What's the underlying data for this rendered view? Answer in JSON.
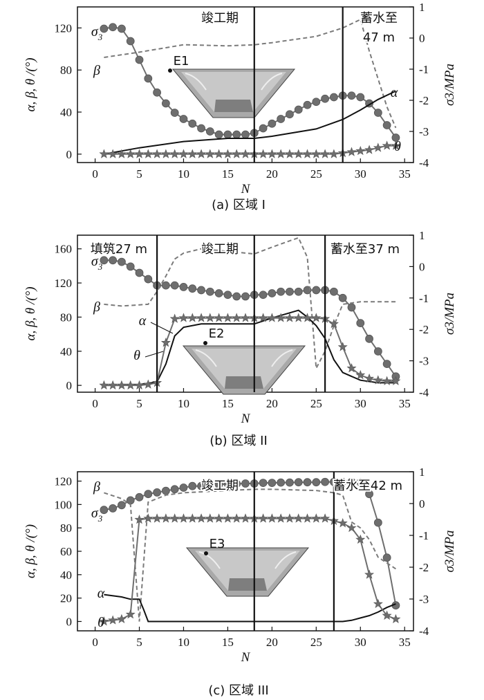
{
  "chart_data": [
    {
      "type": "line",
      "caption": "(a) 区域 I",
      "xlabel": "N",
      "ylabel_left": "α, β, θ /(°)",
      "ylabel_right": "σ3/MPa",
      "xlim": [
        -2,
        36
      ],
      "xticks": [
        0,
        5,
        10,
        15,
        20,
        25,
        30,
        35
      ],
      "ylim_left": [
        -8,
        140
      ],
      "yticks_left": [
        0,
        40,
        80,
        120
      ],
      "ylim_right": [
        -4,
        1
      ],
      "yticks_right": [
        1,
        0,
        -1,
        -2,
        -3,
        -4
      ],
      "vlines": [
        18,
        28
      ],
      "annotations": [
        {
          "text": "竣工期",
          "x": 18
        },
        {
          "text": "蓄水至",
          "x": 31
        },
        {
          "text": "47 m",
          "x": 31
        }
      ],
      "inset_label": "E1",
      "series": [
        {
          "name": "σ3",
          "axis": "right",
          "marker": "circle",
          "color": "#6e6e6e",
          "x": [
            1,
            2,
            3,
            4,
            5,
            6,
            7,
            8,
            9,
            10,
            11,
            12,
            13,
            14,
            15,
            16,
            17,
            18,
            19,
            20,
            21,
            22,
            23,
            24,
            25,
            26,
            27,
            28,
            29,
            30,
            31,
            32,
            33,
            34
          ],
          "y": [
            0.3,
            0.35,
            0.3,
            -0.1,
            -0.7,
            -1.3,
            -1.75,
            -2.1,
            -2.4,
            -2.6,
            -2.75,
            -2.9,
            -3.0,
            -3.1,
            -3.1,
            -3.1,
            -3.1,
            -3.05,
            -2.9,
            -2.75,
            -2.6,
            -2.45,
            -2.3,
            -2.15,
            -2.05,
            -1.95,
            -1.9,
            -1.85,
            -1.85,
            -1.9,
            -2.1,
            -2.4,
            -2.8,
            -3.2
          ]
        },
        {
          "name": "β",
          "axis": "left",
          "line": "dashed",
          "color": "#7a7a7a",
          "x": [
            1,
            5,
            10,
            15,
            18,
            20,
            25,
            28,
            30,
            31,
            33,
            34
          ],
          "y": [
            92,
            97,
            104,
            103,
            104,
            106,
            112,
            120,
            128,
            98,
            45,
            25
          ]
        },
        {
          "name": "α",
          "axis": "left",
          "line": "solid",
          "color": "#111111",
          "x": [
            1,
            5,
            10,
            15,
            18,
            20,
            25,
            28,
            30,
            32,
            34
          ],
          "y": [
            0,
            6,
            12,
            15,
            15,
            17,
            24,
            33,
            42,
            52,
            60
          ]
        },
        {
          "name": "θ",
          "axis": "left",
          "marker": "star",
          "color": "#6e6e6e",
          "x": [
            1,
            2,
            3,
            4,
            5,
            6,
            7,
            8,
            9,
            10,
            11,
            12,
            13,
            14,
            15,
            16,
            17,
            18,
            19,
            20,
            21,
            22,
            23,
            24,
            25,
            26,
            27,
            28,
            29,
            30,
            31,
            32,
            33,
            34
          ],
          "y": [
            0,
            0,
            0,
            0,
            0,
            0,
            0,
            0,
            0,
            0,
            0,
            0,
            0,
            0,
            0,
            0,
            0,
            0,
            0,
            0,
            0,
            0,
            0,
            0,
            0,
            0,
            0,
            1,
            2,
            3,
            4,
            6,
            8,
            8
          ]
        }
      ]
    },
    {
      "type": "line",
      "caption": "(b) 区域 II",
      "xlabel": "N",
      "ylabel_left": "α, β, θ /(°)",
      "ylabel_right": "σ3/MPa",
      "xlim": [
        -2,
        36
      ],
      "xticks": [
        0,
        5,
        10,
        15,
        20,
        25,
        30,
        35
      ],
      "ylim_left": [
        -8,
        176
      ],
      "yticks_left": [
        0,
        40,
        80,
        120,
        160
      ],
      "ylim_right": [
        -4,
        1
      ],
      "yticks_right": [
        1,
        0,
        -1,
        -2,
        -3,
        -4
      ],
      "vlines": [
        7,
        18,
        26
      ],
      "annotations": [
        {
          "text": "填筑27 m",
          "x": 3
        },
        {
          "text": "竣工期",
          "x": 18
        },
        {
          "text": "蓄水至37 m",
          "x": 30
        }
      ],
      "inset_label": "E2",
      "series": [
        {
          "name": "σ3",
          "axis": "right",
          "marker": "circle",
          "color": "#6e6e6e",
          "x": [
            1,
            2,
            3,
            4,
            5,
            6,
            7,
            8,
            9,
            10,
            11,
            12,
            13,
            14,
            15,
            16,
            17,
            18,
            19,
            20,
            21,
            22,
            23,
            24,
            25,
            26,
            27,
            28,
            29,
            30,
            31,
            32,
            33,
            34
          ],
          "y": [
            0.2,
            0.2,
            0.15,
            0.0,
            -0.2,
            -0.4,
            -0.6,
            -0.6,
            -0.6,
            -0.65,
            -0.7,
            -0.75,
            -0.8,
            -0.85,
            -0.9,
            -0.95,
            -0.95,
            -0.9,
            -0.9,
            -0.85,
            -0.8,
            -0.8,
            -0.8,
            -0.75,
            -0.75,
            -0.75,
            -0.8,
            -1.0,
            -1.3,
            -1.8,
            -2.3,
            -2.7,
            -3.1,
            -3.5
          ]
        },
        {
          "name": "β",
          "axis": "left",
          "line": "dashed",
          "color": "#7a7a7a",
          "x": [
            1,
            3,
            6,
            7,
            8,
            9,
            10,
            12,
            15,
            18,
            20,
            23,
            24,
            25,
            26,
            27,
            28,
            30,
            34
          ],
          "y": [
            95,
            93,
            95,
            110,
            128,
            148,
            155,
            160,
            157,
            154,
            162,
            173,
            150,
            20,
            40,
            70,
            95,
            98,
            98
          ]
        },
        {
          "name": "α",
          "axis": "left",
          "line": "solid",
          "color": "#111111",
          "x": [
            1,
            3,
            5,
            7,
            8,
            9,
            10,
            12,
            15,
            18,
            20,
            22,
            23,
            24,
            25,
            26,
            27,
            28,
            30,
            32,
            34
          ],
          "y": [
            0,
            0,
            1,
            4,
            25,
            58,
            68,
            72,
            72,
            72,
            79,
            85,
            88,
            80,
            70,
            55,
            30,
            15,
            6,
            3,
            3
          ]
        },
        {
          "name": "θ",
          "axis": "left",
          "marker": "star",
          "color": "#6e6e6e",
          "x": [
            1,
            2,
            3,
            4,
            5,
            6,
            7,
            8,
            9,
            10,
            11,
            12,
            13,
            14,
            15,
            16,
            17,
            18,
            19,
            20,
            21,
            22,
            23,
            24,
            25,
            26,
            27,
            28,
            29,
            30,
            31,
            32,
            33,
            34
          ],
          "y": [
            0,
            0,
            0,
            0,
            0,
            1,
            3,
            50,
            78,
            79,
            79,
            79,
            79,
            79,
            79,
            79,
            79,
            79,
            79,
            79,
            79,
            79,
            79,
            79,
            79,
            78,
            72,
            45,
            20,
            12,
            8,
            6,
            5,
            5
          ]
        }
      ]
    },
    {
      "type": "line",
      "caption": "(c) 区域 III",
      "xlabel": "N",
      "ylabel_left": "α, β, θ /(°)",
      "ylabel_right": "σ3/MPa",
      "xlim": [
        -2,
        36
      ],
      "xticks": [
        0,
        5,
        10,
        15,
        20,
        25,
        30,
        35
      ],
      "ylim_left": [
        -8,
        128
      ],
      "yticks_left": [
        0,
        20,
        40,
        60,
        80,
        100,
        120
      ],
      "ylim_right": [
        -4,
        1
      ],
      "yticks_right": [
        1,
        0,
        -1,
        -2,
        -3,
        -4
      ],
      "vlines": [
        18,
        27
      ],
      "annotations": [
        {
          "text": "竣工期",
          "x": 18
        },
        {
          "text": "蓄水至42 m",
          "x": 30
        }
      ],
      "inset_label": "E3",
      "series": [
        {
          "name": "σ3",
          "axis": "right",
          "marker": "circle",
          "color": "#6e6e6e",
          "x": [
            1,
            2,
            3,
            4,
            5,
            6,
            7,
            8,
            9,
            10,
            11,
            12,
            13,
            14,
            15,
            16,
            17,
            18,
            19,
            20,
            21,
            22,
            23,
            24,
            25,
            26,
            27,
            28,
            29,
            30,
            31,
            32,
            33,
            34
          ],
          "y": [
            -0.2,
            -0.15,
            -0.05,
            0.1,
            0.2,
            0.3,
            0.35,
            0.4,
            0.45,
            0.5,
            0.55,
            0.55,
            0.6,
            0.6,
            0.62,
            0.62,
            0.63,
            0.63,
            0.65,
            0.65,
            0.66,
            0.66,
            0.67,
            0.67,
            0.67,
            0.68,
            0.68,
            0.68,
            0.68,
            0.67,
            0.3,
            -0.6,
            -1.7,
            -3.2
          ]
        },
        {
          "name": "β",
          "axis": "left",
          "line": "dashed",
          "color": "#7a7a7a",
          "x": [
            1,
            3,
            4,
            5,
            6,
            8,
            10,
            15,
            18,
            20,
            25,
            27,
            28,
            29,
            30,
            31,
            32,
            34
          ],
          "y": [
            110,
            105,
            100,
            0,
            102,
            108,
            110,
            112,
            113,
            113,
            112,
            110,
            108,
            85,
            80,
            70,
            55,
            45
          ]
        },
        {
          "name": "α",
          "axis": "left",
          "line": "solid",
          "color": "#111111",
          "x": [
            1,
            3,
            4,
            5,
            5.5,
            6,
            10,
            15,
            18,
            20,
            25,
            27,
            28,
            29,
            30,
            31,
            32,
            33,
            34
          ],
          "y": [
            23,
            21,
            19,
            19,
            10,
            0,
            0,
            0,
            0,
            0,
            0,
            0,
            0,
            1,
            3,
            5,
            8,
            12,
            15
          ]
        },
        {
          "name": "θ",
          "axis": "left",
          "marker": "star",
          "color": "#6e6e6e",
          "x": [
            1,
            2,
            3,
            4,
            5,
            6,
            7,
            8,
            9,
            10,
            11,
            12,
            13,
            14,
            15,
            16,
            17,
            18,
            19,
            20,
            21,
            22,
            23,
            24,
            25,
            26,
            27,
            28,
            29,
            30,
            31,
            32,
            33,
            34
          ],
          "y": [
            0,
            1,
            2,
            6,
            87,
            88,
            88,
            88,
            88,
            88,
            88,
            88,
            88,
            88,
            88,
            88,
            88,
            88,
            88,
            88,
            88,
            88,
            88,
            88,
            88,
            88,
            86,
            84,
            80,
            70,
            40,
            15,
            5,
            2
          ]
        }
      ]
    }
  ]
}
